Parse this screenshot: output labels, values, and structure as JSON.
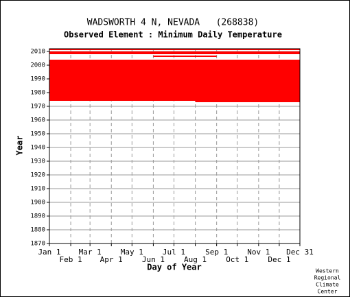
{
  "chart_data": {
    "type": "range",
    "title": "WADSWORTH 4 N, NEVADA   (268838)",
    "subtitle": "Observed Element : Minimum Daily Temperature",
    "x_label": "Day of Year",
    "y_label": "Year",
    "credit": [
      "Western",
      "Regional",
      "Climate",
      "Center"
    ],
    "color": "#ff0000",
    "xlim": [
      1,
      365
    ],
    "ylim": [
      1870,
      2012
    ],
    "xticks": [
      {
        "value": 1,
        "label": "Jan 1"
      },
      {
        "value": 32,
        "label": "Feb 1"
      },
      {
        "value": 60,
        "label": "Mar 1"
      },
      {
        "value": 91,
        "label": "Apr 1"
      },
      {
        "value": 121,
        "label": "May 1"
      },
      {
        "value": 152,
        "label": "Jun 1"
      },
      {
        "value": 182,
        "label": "Jul 1"
      },
      {
        "value": 213,
        "label": "Aug 1"
      },
      {
        "value": 244,
        "label": "Sep 1"
      },
      {
        "value": 274,
        "label": "Oct 1"
      },
      {
        "value": 305,
        "label": "Nov 1"
      },
      {
        "value": 335,
        "label": "Dec 1"
      },
      {
        "value": 365,
        "label": "Dec 31"
      }
    ],
    "yticks": [
      1870,
      1880,
      1890,
      1900,
      1910,
      1920,
      1930,
      1940,
      1950,
      1960,
      1970,
      1980,
      1990,
      2000,
      2010
    ],
    "grid": true,
    "years": [
      2011,
      2009,
      2008,
      2006,
      2003,
      2002,
      2001,
      2000,
      1999,
      1998,
      1997,
      1996,
      1995,
      1994,
      1993,
      1992,
      1991,
      1990,
      1989,
      1988,
      1987,
      1986,
      1985,
      1984,
      1983,
      1982,
      1981,
      1980,
      1979,
      1978,
      1977,
      1976,
      1975,
      1974,
      1973
    ],
    "starts": [
      1,
      1,
      1,
      152,
      1,
      1,
      1,
      1,
      1,
      1,
      1,
      1,
      1,
      1,
      1,
      1,
      1,
      1,
      1,
      1,
      1,
      1,
      1,
      1,
      1,
      1,
      1,
      1,
      1,
      1,
      1,
      1,
      1,
      1,
      213
    ],
    "ends": [
      365,
      365,
      365,
      244,
      365,
      365,
      365,
      365,
      365,
      365,
      365,
      365,
      365,
      365,
      365,
      365,
      365,
      365,
      365,
      365,
      365,
      365,
      365,
      365,
      365,
      365,
      365,
      365,
      365,
      365,
      365,
      365,
      365,
      365,
      365
    ]
  }
}
